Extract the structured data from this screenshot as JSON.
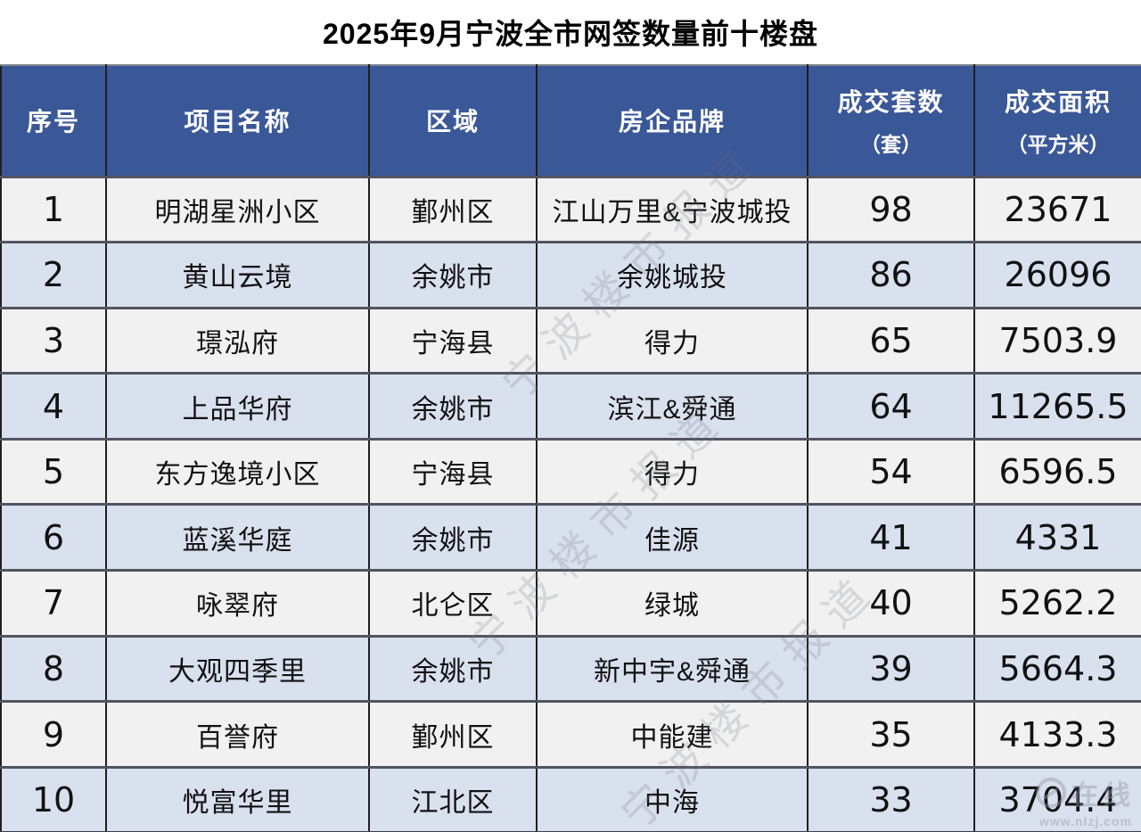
{
  "title": "2025年9月宁波全市网签数量前十楼盘",
  "colors": {
    "header_bg": "#3a5798",
    "header_text": "#ffffff",
    "row_odd_bg": "#f1f1f1",
    "row_even_bg": "#d9e0ee",
    "grid_vertical": "#1f1f1f",
    "grid_horizontal": "#50555f",
    "body_text": "#111111"
  },
  "table": {
    "col_keys": [
      "index",
      "project",
      "district",
      "brand",
      "units",
      "area"
    ],
    "headers": [
      {
        "label": "序号",
        "sub": ""
      },
      {
        "label": "项目名称",
        "sub": ""
      },
      {
        "label": "区域",
        "sub": ""
      },
      {
        "label": "房企品牌",
        "sub": ""
      },
      {
        "label": "成交套数",
        "sub": "（套）"
      },
      {
        "label": "成交面积",
        "sub": "（平方米）"
      }
    ],
    "rows": [
      [
        "1",
        "明湖星洲小区",
        "鄞州区",
        "江山万里&宁波城投",
        "98",
        "23671"
      ],
      [
        "2",
        "黄山云境",
        "余姚市",
        "余姚城投",
        "86",
        "26096"
      ],
      [
        "3",
        "璟泓府",
        "宁海县",
        "得力",
        "65",
        "7503.9"
      ],
      [
        "4",
        "上品华府",
        "余姚市",
        "滨江&舜通",
        "64",
        "11265.5"
      ],
      [
        "5",
        "东方逸境小区",
        "宁海县",
        "得力",
        "54",
        "6596.5"
      ],
      [
        "6",
        "蓝溪华庭",
        "余姚市",
        "佳源",
        "41",
        "4331"
      ],
      [
        "7",
        "咏翠府",
        "北仑区",
        "绿城",
        "40",
        "5262.2"
      ],
      [
        "8",
        "大观四季里",
        "余姚市",
        "新中宇&舜通",
        "39",
        "5664.3"
      ],
      [
        "9",
        "百誉府",
        "鄞州区",
        "中能建",
        "35",
        "4133.3"
      ],
      [
        "10",
        "悦富华里",
        "江北区",
        "中海",
        "33",
        "3704.4"
      ]
    ]
  },
  "watermark": {
    "diagonal_text": "宁波楼市报道",
    "corner_text": "在线",
    "corner_url": "www.nlzj.com"
  },
  "chart_data": {
    "type": "table",
    "title": "2025年9月宁波全市网签数量前十楼盘",
    "columns": [
      "序号",
      "项目名称",
      "区域",
      "房企品牌",
      "成交套数（套）",
      "成交面积（平方米）"
    ],
    "rows": [
      [
        1,
        "明湖星洲小区",
        "鄞州区",
        "江山万里&宁波城投",
        98,
        23671
      ],
      [
        2,
        "黄山云境",
        "余姚市",
        "余姚城投",
        86,
        26096
      ],
      [
        3,
        "璟泓府",
        "宁海县",
        "得力",
        65,
        7503.9
      ],
      [
        4,
        "上品华府",
        "余姚市",
        "滨江&舜通",
        64,
        11265.5
      ],
      [
        5,
        "东方逸境小区",
        "宁海县",
        "得力",
        54,
        6596.5
      ],
      [
        6,
        "蓝溪华庭",
        "余姚市",
        "佳源",
        41,
        4331
      ],
      [
        7,
        "咏翠府",
        "北仑区",
        "绿城",
        40,
        5262.2
      ],
      [
        8,
        "大观四季里",
        "余姚市",
        "新中宇&舜通",
        39,
        5664.3
      ],
      [
        9,
        "百誉府",
        "鄞州区",
        "中能建",
        35,
        4133.3
      ],
      [
        10,
        "悦富华里",
        "江北区",
        "中海",
        33,
        3704.4
      ]
    ]
  }
}
